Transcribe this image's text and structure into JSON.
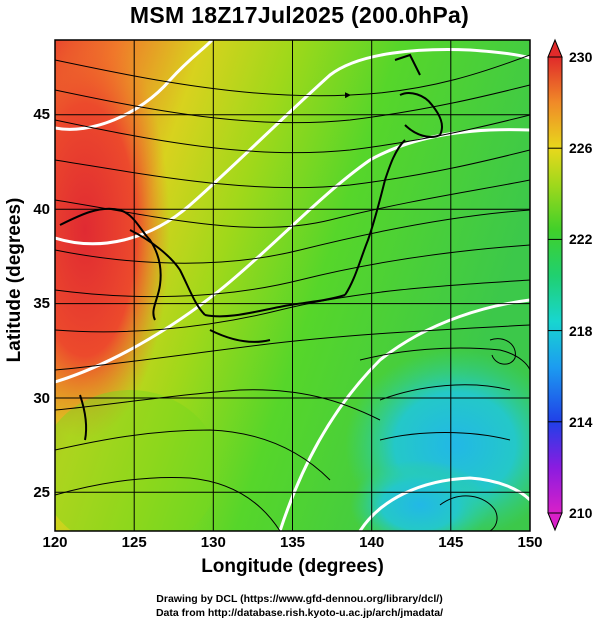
{
  "title": "MSM 18Z17Jul2025 (200.0hPa)",
  "x_axis": {
    "label": "Longitude (degrees)",
    "ticks": [
      "120",
      "125",
      "130",
      "135",
      "140",
      "145",
      "150"
    ]
  },
  "y_axis": {
    "label": "Latitude  (degrees)",
    "ticks": [
      "25",
      "30",
      "35",
      "40",
      "45"
    ]
  },
  "colorbar": {
    "ticks": [
      "210",
      "214",
      "218",
      "222",
      "226",
      "230"
    ]
  },
  "credits": {
    "line1": "Drawing by DCL (https://www.gfd-dennou.org/library/dcl/)",
    "line2": "Data from http://database.rish.kyoto-u.ac.jp/arch/jmadata/"
  },
  "map_data": {
    "type": "heatmap",
    "field": "temperature-like scalar with streamlines",
    "x_range": [
      120,
      150
    ],
    "y_range": [
      22.5,
      47.5
    ],
    "color_range": [
      210,
      230
    ]
  }
}
